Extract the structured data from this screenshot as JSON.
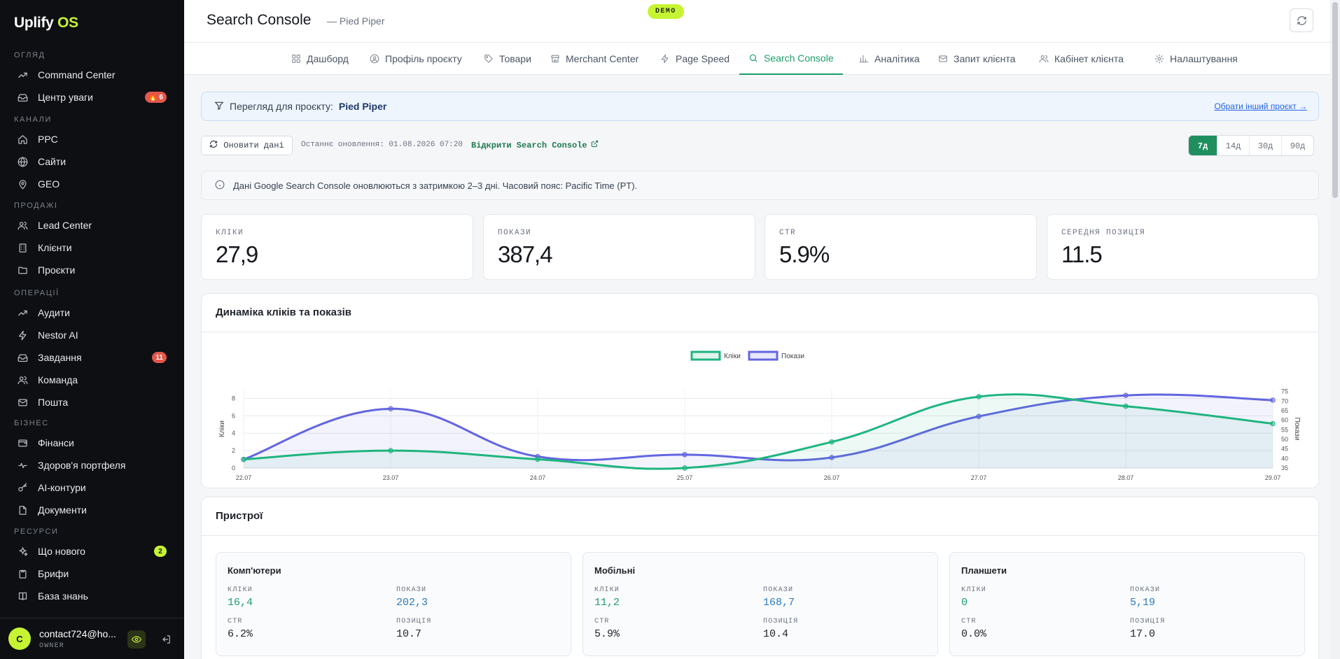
{
  "app": {
    "logo_main": "Uplify",
    "logo_accent": "OS"
  },
  "sidebar": {
    "sections": [
      {
        "label": "ОГЛЯД",
        "items": [
          {
            "label": "Command Center",
            "icon": "trending-icon"
          },
          {
            "label": "Центр уваги",
            "icon": "inbox-icon",
            "badge": "🔥 6"
          }
        ]
      },
      {
        "label": "КАНАЛИ",
        "items": [
          {
            "label": "PPC",
            "icon": "home-icon"
          },
          {
            "label": "Сайти",
            "icon": "globe-icon"
          },
          {
            "label": "GEO",
            "icon": "location-pin-icon"
          }
        ]
      },
      {
        "label": "ПРОДАЖІ",
        "items": [
          {
            "label": "Lead Center",
            "icon": "users-icon"
          },
          {
            "label": "Клієнти",
            "icon": "building-icon"
          },
          {
            "label": "Проєкти",
            "icon": "folder-icon"
          }
        ]
      },
      {
        "label": "ОПЕРАЦІЇ",
        "items": [
          {
            "label": "Аудити",
            "icon": "trending-icon"
          },
          {
            "label": "Nestor AI",
            "icon": "bolt-icon"
          },
          {
            "label": "Завдання",
            "icon": "inbox-icon",
            "badge": "11"
          },
          {
            "label": "Команда",
            "icon": "users-icon"
          },
          {
            "label": "Пошта",
            "icon": "mail-icon"
          }
        ]
      },
      {
        "label": "БІЗНЕС",
        "items": [
          {
            "label": "Фінанси",
            "icon": "wallet-icon"
          },
          {
            "label": "Здоров'я портфеля",
            "icon": "pulse-icon"
          },
          {
            "label": "AI-контури",
            "icon": "key-icon"
          },
          {
            "label": "Документи",
            "icon": "file-icon"
          }
        ]
      },
      {
        "label": "РЕСУРСИ",
        "items": [
          {
            "label": "Що нового",
            "icon": "sparkles-icon",
            "badge": "2"
          },
          {
            "label": "Брифи",
            "icon": "clipboard-icon"
          },
          {
            "label": "База знань",
            "icon": "book-icon"
          }
        ]
      }
    ],
    "user": {
      "initial": "C",
      "email": "contact724@ho...",
      "role": "OWNER"
    }
  },
  "header": {
    "title": "Search Console",
    "subtitle": "— Pied Piper",
    "demo": "DEMO"
  },
  "tabs": [
    {
      "label": "Дашборд",
      "icon": "grid-icon"
    },
    {
      "label": "Профіль проєкту",
      "icon": "user-circle-icon"
    },
    {
      "label": "Товари",
      "icon": "tag-icon"
    },
    {
      "label": "Merchant Center",
      "icon": "store-icon"
    },
    {
      "label": "Page Speed",
      "icon": "bolt-icon"
    },
    {
      "label": "Search Console",
      "icon": "search-icon",
      "active": true
    },
    {
      "label": "Аналітика",
      "icon": "bar-chart-icon"
    },
    {
      "label": "Запит клієнта",
      "icon": "mail-icon"
    },
    {
      "label": "Кабінет клієнта",
      "icon": "users-icon"
    },
    {
      "label": "Налаштування",
      "icon": "gear-icon"
    }
  ],
  "banner": {
    "prefix": "Перегляд для проєкту:",
    "project": "Pied Piper",
    "change_link": "Обрати інший проєкт →"
  },
  "toolbar": {
    "refresh_label": "Оновити дані",
    "last_update": "Останнє оновлення: 01.08.2026 07:20",
    "open_sc": "Відкрити Search Console",
    "periods": [
      "7д",
      "14д",
      "30д",
      "90д"
    ],
    "active_period": "7д"
  },
  "note": "Дані Google Search Console оновлюються з затримкою 2–3 дні. Часовий пояс: Pacific Time (PT).",
  "kpis": [
    {
      "label": "КЛІКИ",
      "value": "27,9"
    },
    {
      "label": "ПОКАЗИ",
      "value": "387,4"
    },
    {
      "label": "CTR",
      "value": "5.9%"
    },
    {
      "label": "СЕРЕДНЯ ПОЗИЦІЯ",
      "value": "11.5"
    }
  ],
  "chart_card": {
    "title": "Динаміка кліків та показів"
  },
  "chart_data": {
    "type": "line",
    "x": [
      "22.07",
      "23.07",
      "24.07",
      "25.07",
      "26.07",
      "27.07",
      "28.07",
      "29.07"
    ],
    "series": [
      {
        "name": "Кліки",
        "axis": "left",
        "color": "#1fb57f",
        "values": [
          1,
          2,
          1,
          0,
          3,
          8.2,
          7.1,
          5.1
        ]
      },
      {
        "name": "Покази",
        "axis": "right",
        "color": "#6366e0",
        "values": [
          39.5,
          66,
          41,
          42,
          40.5,
          62,
          73,
          70.5
        ]
      }
    ],
    "ylabel": "Кліки",
    "y2label": "Покази",
    "ylim": [
      0,
      9
    ],
    "y2lim": [
      35,
      76
    ],
    "yticks": [
      0,
      2,
      4,
      6,
      8
    ],
    "y2ticks": [
      35,
      40,
      45,
      50,
      55,
      60,
      65,
      70,
      75
    ],
    "legend": "top-center",
    "grid": true
  },
  "devices_card": {
    "title": "Пристрої",
    "devices": [
      {
        "name": "Комп'ютери",
        "clicks_label": "КЛІКИ",
        "clicks": "16,4",
        "impr_label": "ПОКАЗИ",
        "impr": "202,3",
        "ctr_label": "CTR",
        "ctr": "6.2%",
        "pos_label": "ПОЗИЦІЯ",
        "pos": "10.7"
      },
      {
        "name": "Мобільні",
        "clicks_label": "КЛІКИ",
        "clicks": "11,2",
        "impr_label": "ПОКАЗИ",
        "impr": "168,7",
        "ctr_label": "CTR",
        "ctr": "5.9%",
        "pos_label": "ПОЗИЦІЯ",
        "pos": "10.4"
      },
      {
        "name": "Планшети",
        "clicks_label": "КЛІКИ",
        "clicks": "0",
        "impr_label": "ПОКАЗИ",
        "impr": "5,19",
        "ctr_label": "CTR",
        "ctr": "0.0%",
        "pos_label": "ПОЗИЦІЯ",
        "pos": "17.0"
      }
    ]
  }
}
